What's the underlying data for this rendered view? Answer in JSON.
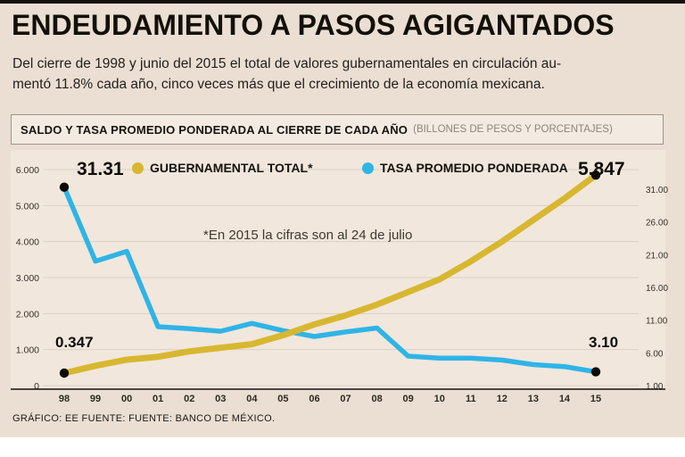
{
  "page": {
    "title": "ENDEUDAMIENTO A PASOS AGIGANTADOS",
    "subtitle_line1": "Del cierre de 1998 y junio del 2015 el total de valores gubernamentales en circulación au-",
    "subtitle_line2": "mentó 11.8% cada año, cinco veces más que el crecimiento de la economía mexicana.",
    "footer": "GRÁFICO: EE  FUENTE: FUENTE: BANCO DE MÉXICO."
  },
  "chart_header": {
    "title": "SALDO Y TASA PROMEDIO PONDERADA AL CIERRE DE CADA AÑO",
    "subtitle": "(BILLONES DE PESOS Y PORCENTAJES)"
  },
  "legend": [
    {
      "label": "GUBERNAMENTAL TOTAL*",
      "color": "#d8b730"
    },
    {
      "label": "TASA PROMEDIO PONDERADA",
      "color": "#2fb4e6"
    }
  ],
  "annotations": {
    "blue_start": "31.31",
    "yellow_end": "5.847",
    "yellow_start": "0.347",
    "blue_end": "3.10",
    "footnote": "*En 2015 la cifras son al 24 de julio"
  },
  "chart_data": {
    "type": "line",
    "title": "SALDO Y TASA PROMEDIO PONDERADA AL CIERRE DE CADA AÑO",
    "subtitle": "(BILLONES DE PESOS Y PORCENTAJES)",
    "categories": [
      "98",
      "99",
      "00",
      "01",
      "02",
      "03",
      "04",
      "05",
      "06",
      "07",
      "08",
      "09",
      "10",
      "11",
      "12",
      "13",
      "14",
      "15"
    ],
    "series": [
      {
        "name": "GUBERNAMENTAL TOTAL*",
        "axis": "left",
        "color": "#d8b730",
        "width": 7,
        "values": [
          0.347,
          0.55,
          0.72,
          0.8,
          0.95,
          1.05,
          1.15,
          1.4,
          1.7,
          1.95,
          2.25,
          2.6,
          2.95,
          3.45,
          4.0,
          4.6,
          5.2,
          5.847
        ]
      },
      {
        "name": "TASA PROMEDIO PONDERADA",
        "axis": "right",
        "color": "#2fb4e6",
        "width": 5.5,
        "values": [
          31.31,
          20.0,
          21.5,
          10.0,
          9.7,
          9.3,
          10.5,
          9.4,
          8.5,
          9.2,
          9.8,
          5.5,
          5.2,
          5.2,
          4.9,
          4.2,
          3.9,
          3.1
        ]
      }
    ],
    "left_axis": {
      "min": 0,
      "max": 6,
      "ticks": [
        {
          "label": "6.000",
          "value": 6
        },
        {
          "label": "5.000",
          "value": 5
        },
        {
          "label": "4.000",
          "value": 4
        },
        {
          "label": "3.000",
          "value": 3
        },
        {
          "label": "2.000",
          "value": 2
        },
        {
          "label": "1.000",
          "value": 1
        },
        {
          "label": "0",
          "value": 0
        }
      ]
    },
    "right_axis": {
      "min": 1,
      "max": 31,
      "ticks": [
        {
          "label": "31.00",
          "value": 31
        },
        {
          "label": "26.00",
          "value": 26
        },
        {
          "label": "21.00",
          "value": 21
        },
        {
          "label": "16.00",
          "value": 16
        },
        {
          "label": "11.00",
          "value": 11
        },
        {
          "label": "6.00",
          "value": 6
        },
        {
          "label": "1.00",
          "value": 1
        }
      ]
    },
    "grid": true,
    "legend_position": "top"
  }
}
